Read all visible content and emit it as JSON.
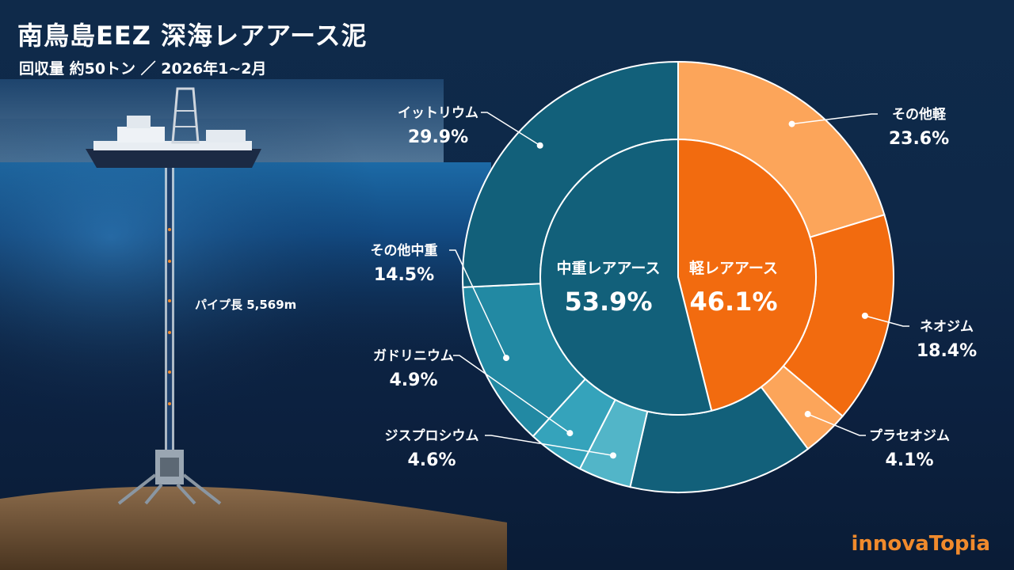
{
  "header": {
    "title": "南鳥島EEZ 深海レアアース泥",
    "subtitle": "回収量 約50トン ／ 2026年1~2月"
  },
  "scene": {
    "pipe_label": "パイプ長 5,569m"
  },
  "brand": {
    "logo": "innovaTopia"
  },
  "colors": {
    "heavy_dark": "#12607a",
    "heavy_mid": "#2289a3",
    "heavy_light": "#35a3bb",
    "heavy_lighter": "#52b5c8",
    "light_dark": "#f26b0f",
    "light_mid": "#f98a2e",
    "light_light": "#fca55a"
  },
  "chart_data": {
    "type": "pie",
    "inner": [
      {
        "label": "中重レアアース",
        "value": 53.9,
        "value_label": "53.9%"
      },
      {
        "label": "軽レアアース",
        "value": 46.1,
        "value_label": "46.1%"
      }
    ],
    "outer": [
      {
        "label": "その他軽",
        "value": 23.6,
        "value_label": "23.6%"
      },
      {
        "label": "ネオジム",
        "value": 18.4,
        "value_label": "18.4%"
      },
      {
        "label": "プラセオジム",
        "value": 4.1,
        "value_label": "4.1%"
      },
      {
        "label": "",
        "value": 16.1,
        "value_label": ""
      },
      {
        "label": "ジスプロシウム",
        "value": 4.6,
        "value_label": "4.6%"
      },
      {
        "label": "ガドリニウム",
        "value": 4.9,
        "value_label": "4.9%"
      },
      {
        "label": "その他中重",
        "value": 14.5,
        "value_label": "14.5%"
      },
      {
        "label": "イットリウム",
        "value": 29.9,
        "value_label": "29.9%"
      }
    ]
  }
}
